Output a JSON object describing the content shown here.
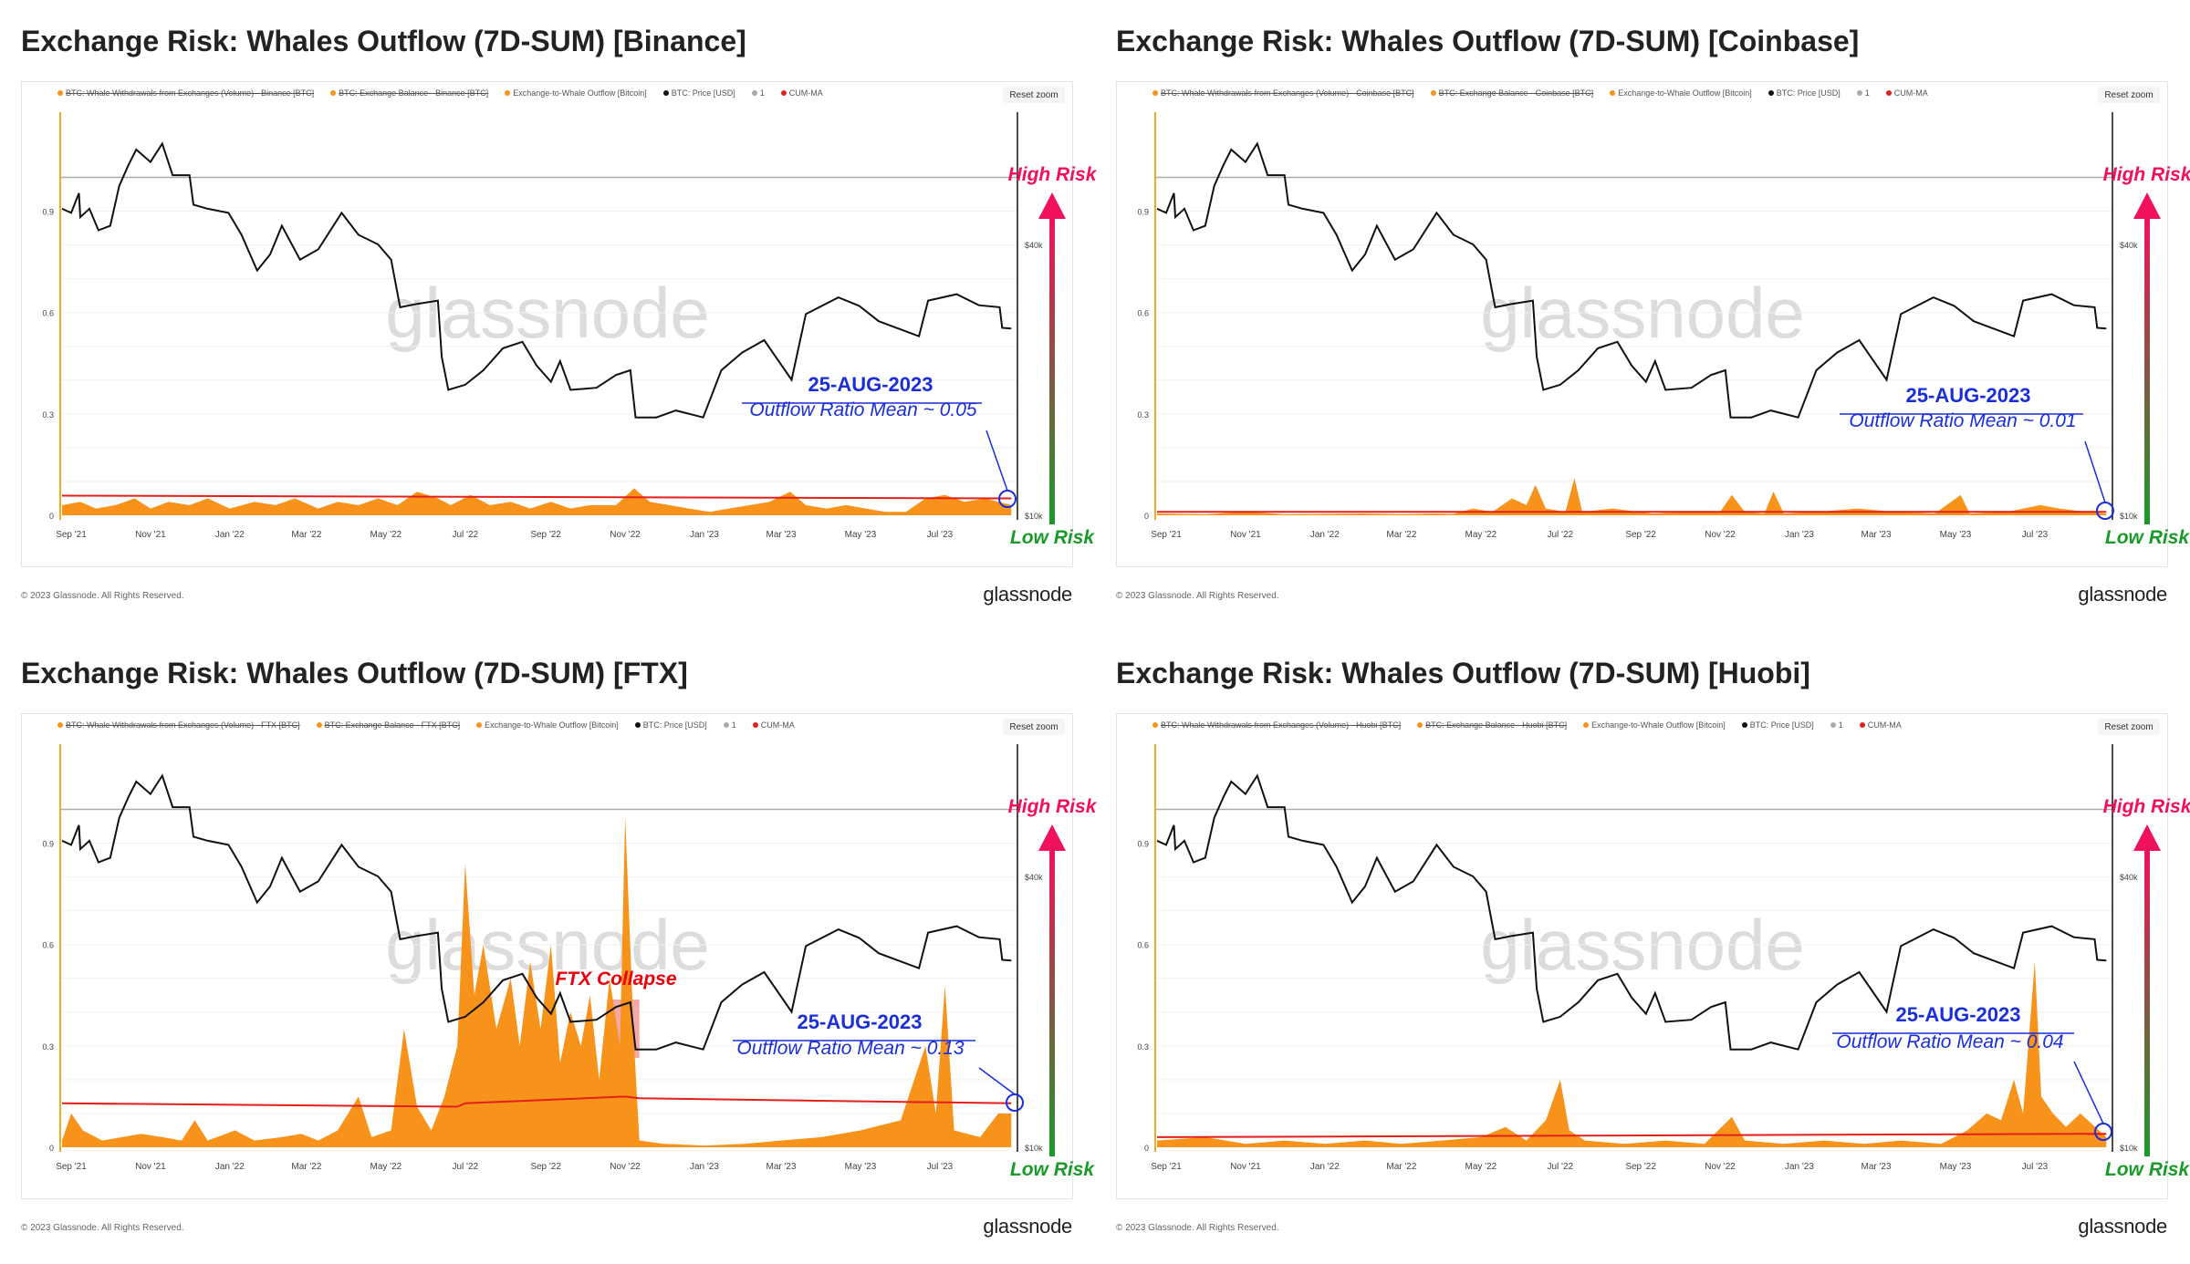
{
  "colors": {
    "outflow": "#f7931a",
    "price": "#111111",
    "cum_ma": "#e3201b",
    "one_line": "#aaaaaa",
    "annotation": "#1a2fd8",
    "high_risk": "#f0115a",
    "low_risk": "#1a9a2a",
    "ftx_collapse": "#e8000b",
    "ftx_box": "#f28b8b"
  },
  "shared": {
    "reset_zoom": "Reset zoom",
    "copyright": "© 2023 Glassnode. All Rights Reserved.",
    "logo": "glassnode",
    "watermark": "glassnode",
    "high_risk": "High Risk",
    "low_risk": "Low Risk",
    "date_label": "25-AUG-2023"
  },
  "chart_data": {
    "type": "line+area",
    "x_ticks": [
      [
        "2021-09-01",
        "Sep '21"
      ],
      [
        "2021-11-01",
        "Nov '21"
      ],
      [
        "2022-01-01",
        "Jan '22"
      ],
      [
        "2022-03-01",
        "Mar '22"
      ],
      [
        "2022-05-01",
        "May '22"
      ],
      [
        "2022-07-01",
        "Jul '22"
      ],
      [
        "2022-09-01",
        "Sep '22"
      ],
      [
        "2022-11-01",
        "Nov '22"
      ],
      [
        "2023-01-01",
        "Jan '23"
      ],
      [
        "2023-03-01",
        "Mar '23"
      ],
      [
        "2023-05-01",
        "May '23"
      ],
      [
        "2023-07-01",
        "Jul '23"
      ]
    ],
    "y_left_ticks": [
      [
        "0",
        "0"
      ],
      [
        "0.3",
        "0.3"
      ],
      [
        "0.6",
        "0.6"
      ],
      [
        "0.9",
        "0.9"
      ]
    ],
    "y_left_range": [
      0,
      1.0
    ],
    "y_right_ticks": [
      [
        "10000",
        "$10k"
      ],
      [
        "40000",
        "$40k"
      ]
    ],
    "y_right_scale": "log",
    "reference_line": 1,
    "btc_price": [
      [
        "2021-08-25",
        48000
      ],
      [
        "2021-09-01",
        47000
      ],
      [
        "2021-09-07",
        52000
      ],
      [
        "2021-09-08",
        46000
      ],
      [
        "2021-09-15",
        48000
      ],
      [
        "2021-09-22",
        43000
      ],
      [
        "2021-10-01",
        44000
      ],
      [
        "2021-10-08",
        54000
      ],
      [
        "2021-10-15",
        60000
      ],
      [
        "2021-10-21",
        65000
      ],
      [
        "2021-11-01",
        61000
      ],
      [
        "2021-11-10",
        67000
      ],
      [
        "2021-11-18",
        57000
      ],
      [
        "2021-12-01",
        57000
      ],
      [
        "2021-12-04",
        49000
      ],
      [
        "2021-12-15",
        48000
      ],
      [
        "2021-12-31",
        47000
      ],
      [
        "2022-01-10",
        42000
      ],
      [
        "2022-01-22",
        35000
      ],
      [
        "2022-02-01",
        38000
      ],
      [
        "2022-02-10",
        44000
      ],
      [
        "2022-02-24",
        37000
      ],
      [
        "2022-03-10",
        39000
      ],
      [
        "2022-03-28",
        47000
      ],
      [
        "2022-04-10",
        42000
      ],
      [
        "2022-04-25",
        40000
      ],
      [
        "2022-05-05",
        37000
      ],
      [
        "2022-05-12",
        29000
      ],
      [
        "2022-05-25",
        29500
      ],
      [
        "2022-06-10",
        30000
      ],
      [
        "2022-06-13",
        22500
      ],
      [
        "2022-06-18",
        19000
      ],
      [
        "2022-07-01",
        19500
      ],
      [
        "2022-07-15",
        21000
      ],
      [
        "2022-07-30",
        23500
      ],
      [
        "2022-08-14",
        24300
      ],
      [
        "2022-08-25",
        21500
      ],
      [
        "2022-09-05",
        19800
      ],
      [
        "2022-09-12",
        22000
      ],
      [
        "2022-09-20",
        19000
      ],
      [
        "2022-10-10",
        19200
      ],
      [
        "2022-10-25",
        20500
      ],
      [
        "2022-11-05",
        21000
      ],
      [
        "2022-11-09",
        16500
      ],
      [
        "2022-11-25",
        16500
      ],
      [
        "2022-12-10",
        17100
      ],
      [
        "2022-12-31",
        16500
      ],
      [
        "2023-01-14",
        21000
      ],
      [
        "2023-01-30",
        23000
      ],
      [
        "2023-02-16",
        24500
      ],
      [
        "2023-03-09",
        20000
      ],
      [
        "2023-03-20",
        28000
      ],
      [
        "2023-04-14",
        30500
      ],
      [
        "2023-04-30",
        29200
      ],
      [
        "2023-05-15",
        27000
      ],
      [
        "2023-06-15",
        25000
      ],
      [
        "2023-06-22",
        30000
      ],
      [
        "2023-07-14",
        31000
      ],
      [
        "2023-07-31",
        29300
      ],
      [
        "2023-08-16",
        29000
      ],
      [
        "2023-08-18",
        26100
      ],
      [
        "2023-08-25",
        26000
      ]
    ]
  },
  "panels": [
    {
      "title": "Exchange Risk: Whales Outflow (7D-SUM) [Binance]",
      "legend": [
        "BTC: Whale Withdrawals from Exchanges (Volume) - Binance [BTC]",
        "BTC: Exchange Balance - Binance [BTC]",
        "Exchange-to-Whale Outflow [Bitcoin]",
        "BTC: Price [USD]",
        "1",
        "CUM-MA"
      ],
      "mean_label": "Outflow Ratio Mean ~ 0.05",
      "outflow": [
        [
          "2021-08-25",
          0.03
        ],
        [
          "2021-09-08",
          0.04
        ],
        [
          "2021-09-20",
          0.02
        ],
        [
          "2021-10-05",
          0.03
        ],
        [
          "2021-10-20",
          0.05
        ],
        [
          "2021-11-01",
          0.02
        ],
        [
          "2021-11-15",
          0.04
        ],
        [
          "2021-12-01",
          0.03
        ],
        [
          "2021-12-15",
          0.05
        ],
        [
          "2022-01-01",
          0.02
        ],
        [
          "2022-01-20",
          0.04
        ],
        [
          "2022-02-05",
          0.03
        ],
        [
          "2022-02-20",
          0.05
        ],
        [
          "2022-03-10",
          0.02
        ],
        [
          "2022-03-25",
          0.04
        ],
        [
          "2022-04-10",
          0.03
        ],
        [
          "2022-04-25",
          0.05
        ],
        [
          "2022-05-10",
          0.03
        ],
        [
          "2022-05-25",
          0.07
        ],
        [
          "2022-06-10",
          0.05
        ],
        [
          "2022-06-20",
          0.03
        ],
        [
          "2022-07-05",
          0.06
        ],
        [
          "2022-07-20",
          0.03
        ],
        [
          "2022-08-05",
          0.04
        ],
        [
          "2022-08-20",
          0.02
        ],
        [
          "2022-09-05",
          0.04
        ],
        [
          "2022-09-20",
          0.02
        ],
        [
          "2022-10-05",
          0.03
        ],
        [
          "2022-10-25",
          0.03
        ],
        [
          "2022-11-08",
          0.08
        ],
        [
          "2022-11-20",
          0.04
        ],
        [
          "2022-12-05",
          0.03
        ],
        [
          "2022-12-20",
          0.02
        ],
        [
          "2023-01-05",
          0.01
        ],
        [
          "2023-01-20",
          0.02
        ],
        [
          "2023-02-05",
          0.03
        ],
        [
          "2023-02-20",
          0.04
        ],
        [
          "2023-03-08",
          0.07
        ],
        [
          "2023-03-20",
          0.03
        ],
        [
          "2023-04-05",
          0.02
        ],
        [
          "2023-04-20",
          0.03
        ],
        [
          "2023-05-05",
          0.02
        ],
        [
          "2023-05-20",
          0.01
        ],
        [
          "2023-06-05",
          0.01
        ],
        [
          "2023-06-20",
          0.05
        ],
        [
          "2023-07-05",
          0.06
        ],
        [
          "2023-07-20",
          0.04
        ],
        [
          "2023-08-05",
          0.05
        ],
        [
          "2023-08-25",
          0.03
        ]
      ],
      "cum_ma": [
        [
          "2021-08-25",
          0.058
        ],
        [
          "2023-08-25",
          0.05
        ]
      ]
    },
    {
      "title": "Exchange Risk: Whales Outflow (7D-SUM) [Coinbase]",
      "legend": [
        "BTC: Whale Withdrawals from Exchanges (Volume) - Coinbase [BTC]",
        "BTC: Exchange Balance - Coinbase [BTC]",
        "Exchange-to-Whale Outflow [Bitcoin]",
        "BTC: Price [USD]",
        "1",
        "CUM-MA"
      ],
      "mean_label": "Outflow Ratio Mean ~ 0.01",
      "outflow": [
        [
          "2021-08-25",
          0.005
        ],
        [
          "2021-10-01",
          0.003
        ],
        [
          "2021-11-01",
          0.01
        ],
        [
          "2021-12-01",
          0.003
        ],
        [
          "2022-02-01",
          0.005
        ],
        [
          "2022-03-01",
          0.003
        ],
        [
          "2022-03-25",
          0.005
        ],
        [
          "2022-04-10",
          0.004
        ],
        [
          "2022-04-25",
          0.02
        ],
        [
          "2022-05-10",
          0.01
        ],
        [
          "2022-05-25",
          0.05
        ],
        [
          "2022-06-05",
          0.03
        ],
        [
          "2022-06-12",
          0.09
        ],
        [
          "2022-06-20",
          0.02
        ],
        [
          "2022-07-05",
          0.01
        ],
        [
          "2022-07-12",
          0.11
        ],
        [
          "2022-07-18",
          0.01
        ],
        [
          "2022-08-10",
          0.02
        ],
        [
          "2022-09-10",
          0.005
        ],
        [
          "2022-10-10",
          0.01
        ],
        [
          "2022-11-01",
          0.01
        ],
        [
          "2022-11-10",
          0.06
        ],
        [
          "2022-11-20",
          0.01
        ],
        [
          "2022-12-05",
          0.005
        ],
        [
          "2022-12-12",
          0.07
        ],
        [
          "2022-12-20",
          0.005
        ],
        [
          "2023-01-15",
          0.01
        ],
        [
          "2023-02-15",
          0.02
        ],
        [
          "2023-03-15",
          0.01
        ],
        [
          "2023-04-15",
          0.005
        ],
        [
          "2023-05-05",
          0.06
        ],
        [
          "2023-05-12",
          0.005
        ],
        [
          "2023-06-10",
          0.01
        ],
        [
          "2023-07-05",
          0.03
        ],
        [
          "2023-07-20",
          0.02
        ],
        [
          "2023-08-10",
          0.01
        ],
        [
          "2023-08-25",
          0.005
        ]
      ],
      "cum_ma": [
        [
          "2021-08-25",
          0.01
        ],
        [
          "2023-08-25",
          0.01
        ]
      ]
    },
    {
      "title": "Exchange Risk: Whales Outflow (7D-SUM) [FTX]",
      "legend": [
        "BTC: Whale Withdrawals from Exchanges (Volume) - FTX [BTC]",
        "BTC: Exchange Balance - FTX [BTC]",
        "Exchange-to-Whale Outflow [Bitcoin]",
        "BTC: Price [USD]",
        "1",
        "CUM-MA"
      ],
      "mean_label": "Outflow Ratio Mean ~ 0.13",
      "event_label": "FTX Collapse",
      "event_range": [
        "2022-10-20",
        "2022-11-12"
      ],
      "outflow": [
        [
          "2021-08-25",
          0.02
        ],
        [
          "2021-09-01",
          0.1
        ],
        [
          "2021-09-10",
          0.05
        ],
        [
          "2021-09-25",
          0.02
        ],
        [
          "2021-10-10",
          0.03
        ],
        [
          "2021-10-25",
          0.04
        ],
        [
          "2021-11-10",
          0.03
        ],
        [
          "2021-11-25",
          0.02
        ],
        [
          "2021-12-05",
          0.08
        ],
        [
          "2021-12-15",
          0.02
        ],
        [
          "2022-01-05",
          0.05
        ],
        [
          "2022-01-20",
          0.02
        ],
        [
          "2022-02-10",
          0.03
        ],
        [
          "2022-02-25",
          0.04
        ],
        [
          "2022-03-10",
          0.02
        ],
        [
          "2022-03-25",
          0.05
        ],
        [
          "2022-04-10",
          0.15
        ],
        [
          "2022-04-20",
          0.03
        ],
        [
          "2022-05-05",
          0.05
        ],
        [
          "2022-05-15",
          0.35
        ],
        [
          "2022-05-25",
          0.12
        ],
        [
          "2022-06-05",
          0.05
        ],
        [
          "2022-06-15",
          0.15
        ],
        [
          "2022-06-25",
          0.3
        ],
        [
          "2022-07-01",
          0.84
        ],
        [
          "2022-07-08",
          0.45
        ],
        [
          "2022-07-15",
          0.6
        ],
        [
          "2022-07-25",
          0.35
        ],
        [
          "2022-08-05",
          0.5
        ],
        [
          "2022-08-12",
          0.3
        ],
        [
          "2022-08-20",
          0.55
        ],
        [
          "2022-08-28",
          0.35
        ],
        [
          "2022-09-05",
          0.6
        ],
        [
          "2022-09-12",
          0.25
        ],
        [
          "2022-09-20",
          0.4
        ],
        [
          "2022-09-28",
          0.3
        ],
        [
          "2022-10-05",
          0.45
        ],
        [
          "2022-10-12",
          0.2
        ],
        [
          "2022-10-20",
          0.5
        ],
        [
          "2022-10-28",
          0.3
        ],
        [
          "2022-11-01",
          0.98
        ],
        [
          "2022-11-08",
          0.3
        ],
        [
          "2022-11-12",
          0.02
        ],
        [
          "2022-12-01",
          0.01
        ],
        [
          "2023-01-01",
          0.005
        ],
        [
          "2023-02-01",
          0.01
        ],
        [
          "2023-03-01",
          0.02
        ],
        [
          "2023-04-01",
          0.03
        ],
        [
          "2023-05-01",
          0.05
        ],
        [
          "2023-06-01",
          0.08
        ],
        [
          "2023-06-20",
          0.3
        ],
        [
          "2023-06-28",
          0.1
        ],
        [
          "2023-07-05",
          0.48
        ],
        [
          "2023-07-12",
          0.05
        ],
        [
          "2023-08-01",
          0.03
        ],
        [
          "2023-08-15",
          0.1
        ],
        [
          "2023-08-25",
          0.1
        ]
      ],
      "cum_ma": [
        [
          "2021-08-25",
          0.13
        ],
        [
          "2022-06-25",
          0.12
        ],
        [
          "2022-07-01",
          0.13
        ],
        [
          "2022-11-01",
          0.15
        ],
        [
          "2022-11-12",
          0.145
        ],
        [
          "2023-08-25",
          0.13
        ]
      ]
    },
    {
      "title": "Exchange Risk: Whales Outflow (7D-SUM) [Huobi]",
      "legend": [
        "BTC: Whale Withdrawals from Exchanges (Volume) - Huobi [BTC]",
        "BTC: Exchange Balance - Huobi [BTC]",
        "Exchange-to-Whale Outflow [Bitcoin]",
        "BTC: Price [USD]",
        "1",
        "CUM-MA"
      ],
      "mean_label": "Outflow Ratio Mean ~ 0.04",
      "outflow": [
        [
          "2021-08-25",
          0.02
        ],
        [
          "2021-10-01",
          0.03
        ],
        [
          "2021-11-01",
          0.01
        ],
        [
          "2021-12-01",
          0.02
        ],
        [
          "2022-01-01",
          0.01
        ],
        [
          "2022-02-01",
          0.02
        ],
        [
          "2022-03-01",
          0.01
        ],
        [
          "2022-04-01",
          0.02
        ],
        [
          "2022-05-01",
          0.03
        ],
        [
          "2022-05-20",
          0.06
        ],
        [
          "2022-06-05",
          0.02
        ],
        [
          "2022-06-20",
          0.08
        ],
        [
          "2022-07-01",
          0.2
        ],
        [
          "2022-07-08",
          0.05
        ],
        [
          "2022-07-20",
          0.02
        ],
        [
          "2022-08-20",
          0.01
        ],
        [
          "2022-09-20",
          0.02
        ],
        [
          "2022-10-20",
          0.01
        ],
        [
          "2022-11-10",
          0.09
        ],
        [
          "2022-11-20",
          0.02
        ],
        [
          "2022-12-20",
          0.01
        ],
        [
          "2023-01-20",
          0.02
        ],
        [
          "2023-02-20",
          0.01
        ],
        [
          "2023-03-20",
          0.02
        ],
        [
          "2023-04-20",
          0.01
        ],
        [
          "2023-05-10",
          0.05
        ],
        [
          "2023-05-25",
          0.1
        ],
        [
          "2023-06-05",
          0.08
        ],
        [
          "2023-06-15",
          0.2
        ],
        [
          "2023-06-22",
          0.1
        ],
        [
          "2023-07-01",
          0.55
        ],
        [
          "2023-07-06",
          0.15
        ],
        [
          "2023-07-15",
          0.1
        ],
        [
          "2023-07-25",
          0.06
        ],
        [
          "2023-08-05",
          0.1
        ],
        [
          "2023-08-25",
          0.03
        ]
      ],
      "cum_ma": [
        [
          "2021-08-25",
          0.03
        ],
        [
          "2023-08-25",
          0.04
        ]
      ]
    }
  ]
}
